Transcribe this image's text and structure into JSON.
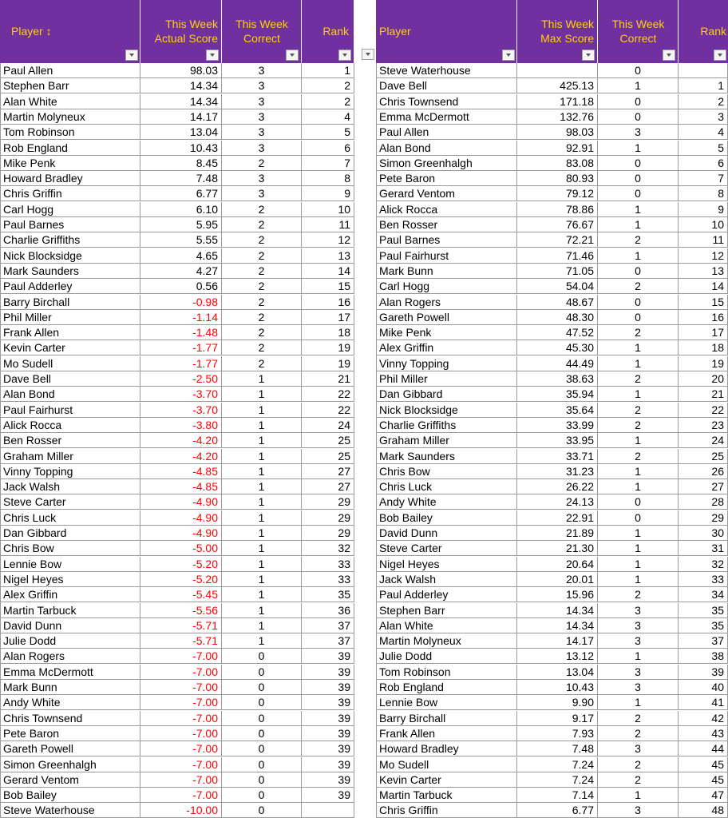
{
  "left_table": {
    "headers": {
      "player": "Player ↕",
      "actual_score": [
        "This Week",
        "Actual Score"
      ],
      "correct": [
        "This Week",
        "Correct"
      ],
      "rank": "Rank"
    },
    "rows": [
      {
        "player": "Paul Allen",
        "score": "98.03",
        "correct": "3",
        "rank": "1"
      },
      {
        "player": "Stephen Barr",
        "score": "14.34",
        "correct": "3",
        "rank": "2"
      },
      {
        "player": "Alan White",
        "score": "14.34",
        "correct": "3",
        "rank": "2"
      },
      {
        "player": "Martin Molyneux",
        "score": "14.17",
        "correct": "3",
        "rank": "4"
      },
      {
        "player": "Tom Robinson",
        "score": "13.04",
        "correct": "3",
        "rank": "5"
      },
      {
        "player": "Rob England",
        "score": "10.43",
        "correct": "3",
        "rank": "6"
      },
      {
        "player": "Mike Penk",
        "score": "8.45",
        "correct": "2",
        "rank": "7"
      },
      {
        "player": "Howard Bradley",
        "score": "7.48",
        "correct": "3",
        "rank": "8"
      },
      {
        "player": "Chris Griffin",
        "score": "6.77",
        "correct": "3",
        "rank": "9"
      },
      {
        "player": "Carl Hogg",
        "score": "6.10",
        "correct": "2",
        "rank": "10"
      },
      {
        "player": "Paul Barnes",
        "score": "5.95",
        "correct": "2",
        "rank": "11"
      },
      {
        "player": "Charlie Griffiths",
        "score": "5.55",
        "correct": "2",
        "rank": "12"
      },
      {
        "player": "Nick Blocksidge",
        "score": "4.65",
        "correct": "2",
        "rank": "13"
      },
      {
        "player": "Mark Saunders",
        "score": "4.27",
        "correct": "2",
        "rank": "14"
      },
      {
        "player": "Paul Adderley",
        "score": "0.56",
        "correct": "2",
        "rank": "15"
      },
      {
        "player": "Barry Birchall",
        "score": "-0.98",
        "correct": "2",
        "rank": "16"
      },
      {
        "player": "Phil Miller",
        "score": "-1.14",
        "correct": "2",
        "rank": "17"
      },
      {
        "player": "Frank Allen",
        "score": "-1.48",
        "correct": "2",
        "rank": "18"
      },
      {
        "player": "Kevin Carter",
        "score": "-1.77",
        "correct": "2",
        "rank": "19"
      },
      {
        "player": "Mo Sudell",
        "score": "-1.77",
        "correct": "2",
        "rank": "19"
      },
      {
        "player": "Dave Bell",
        "score": "-2.50",
        "correct": "1",
        "rank": "21"
      },
      {
        "player": "Alan Bond",
        "score": "-3.70",
        "correct": "1",
        "rank": "22"
      },
      {
        "player": "Paul Fairhurst",
        "score": "-3.70",
        "correct": "1",
        "rank": "22"
      },
      {
        "player": "Alick Rocca",
        "score": "-3.80",
        "correct": "1",
        "rank": "24"
      },
      {
        "player": "Ben Rosser",
        "score": "-4.20",
        "correct": "1",
        "rank": "25"
      },
      {
        "player": "Graham Miller",
        "score": "-4.20",
        "correct": "1",
        "rank": "25"
      },
      {
        "player": "Vinny Topping",
        "score": "-4.85",
        "correct": "1",
        "rank": "27"
      },
      {
        "player": "Jack Walsh",
        "score": "-4.85",
        "correct": "1",
        "rank": "27"
      },
      {
        "player": "Steve Carter",
        "score": "-4.90",
        "correct": "1",
        "rank": "29"
      },
      {
        "player": "Chris Luck",
        "score": "-4.90",
        "correct": "1",
        "rank": "29"
      },
      {
        "player": "Dan Gibbard",
        "score": "-4.90",
        "correct": "1",
        "rank": "29"
      },
      {
        "player": "Chris Bow",
        "score": "-5.00",
        "correct": "1",
        "rank": "32"
      },
      {
        "player": "Lennie Bow",
        "score": "-5.20",
        "correct": "1",
        "rank": "33"
      },
      {
        "player": "Nigel Heyes",
        "score": "-5.20",
        "correct": "1",
        "rank": "33"
      },
      {
        "player": "Alex Griffin",
        "score": "-5.45",
        "correct": "1",
        "rank": "35"
      },
      {
        "player": "Martin Tarbuck",
        "score": "-5.56",
        "correct": "1",
        "rank": "36"
      },
      {
        "player": "David Dunn",
        "score": "-5.71",
        "correct": "1",
        "rank": "37"
      },
      {
        "player": "Julie Dodd",
        "score": "-5.71",
        "correct": "1",
        "rank": "37"
      },
      {
        "player": "Alan Rogers",
        "score": "-7.00",
        "correct": "0",
        "rank": "39"
      },
      {
        "player": "Emma McDermott",
        "score": "-7.00",
        "correct": "0",
        "rank": "39"
      },
      {
        "player": "Mark Bunn",
        "score": "-7.00",
        "correct": "0",
        "rank": "39"
      },
      {
        "player": "Andy White",
        "score": "-7.00",
        "correct": "0",
        "rank": "39"
      },
      {
        "player": "Chris Townsend",
        "score": "-7.00",
        "correct": "0",
        "rank": "39"
      },
      {
        "player": "Pete Baron",
        "score": "-7.00",
        "correct": "0",
        "rank": "39"
      },
      {
        "player": "Gareth Powell",
        "score": "-7.00",
        "correct": "0",
        "rank": "39"
      },
      {
        "player": "Simon Greenhalgh",
        "score": "-7.00",
        "correct": "0",
        "rank": "39"
      },
      {
        "player": "Gerard Ventom",
        "score": "-7.00",
        "correct": "0",
        "rank": "39"
      },
      {
        "player": "Bob Bailey",
        "score": "-7.00",
        "correct": "0",
        "rank": "39"
      },
      {
        "player": "Steve Waterhouse",
        "score": "-10.00",
        "correct": "0",
        "rank": ""
      }
    ]
  },
  "right_table": {
    "headers": {
      "player": "Player",
      "max_score": [
        "This Week",
        "Max Score"
      ],
      "correct": [
        "This Week",
        "Correct"
      ],
      "rank": "Rank"
    },
    "rows": [
      {
        "player": "Steve Waterhouse",
        "score": "",
        "correct": "0",
        "rank": ""
      },
      {
        "player": "Dave Bell",
        "score": "425.13",
        "correct": "1",
        "rank": "1"
      },
      {
        "player": "Chris Townsend",
        "score": "171.18",
        "correct": "0",
        "rank": "2"
      },
      {
        "player": "Emma McDermott",
        "score": "132.76",
        "correct": "0",
        "rank": "3"
      },
      {
        "player": "Paul Allen",
        "score": "98.03",
        "correct": "3",
        "rank": "4"
      },
      {
        "player": "Alan Bond",
        "score": "92.91",
        "correct": "1",
        "rank": "5"
      },
      {
        "player": "Simon Greenhalgh",
        "score": "83.08",
        "correct": "0",
        "rank": "6"
      },
      {
        "player": "Pete Baron",
        "score": "80.93",
        "correct": "0",
        "rank": "7"
      },
      {
        "player": "Gerard Ventom",
        "score": "79.12",
        "correct": "0",
        "rank": "8"
      },
      {
        "player": "Alick Rocca",
        "score": "78.86",
        "correct": "1",
        "rank": "9"
      },
      {
        "player": "Ben Rosser",
        "score": "76.67",
        "correct": "1",
        "rank": "10"
      },
      {
        "player": "Paul Barnes",
        "score": "72.21",
        "correct": "2",
        "rank": "11"
      },
      {
        "player": "Paul Fairhurst",
        "score": "71.46",
        "correct": "1",
        "rank": "12"
      },
      {
        "player": "Mark Bunn",
        "score": "71.05",
        "correct": "0",
        "rank": "13"
      },
      {
        "player": "Carl Hogg",
        "score": "54.04",
        "correct": "2",
        "rank": "14"
      },
      {
        "player": "Alan Rogers",
        "score": "48.67",
        "correct": "0",
        "rank": "15"
      },
      {
        "player": "Gareth Powell",
        "score": "48.30",
        "correct": "0",
        "rank": "16"
      },
      {
        "player": "Mike Penk",
        "score": "47.52",
        "correct": "2",
        "rank": "17"
      },
      {
        "player": "Alex Griffin",
        "score": "45.30",
        "correct": "1",
        "rank": "18"
      },
      {
        "player": "Vinny Topping",
        "score": "44.49",
        "correct": "1",
        "rank": "19"
      },
      {
        "player": "Phil Miller",
        "score": "38.63",
        "correct": "2",
        "rank": "20"
      },
      {
        "player": "Dan Gibbard",
        "score": "35.94",
        "correct": "1",
        "rank": "21"
      },
      {
        "player": "Nick Blocksidge",
        "score": "35.64",
        "correct": "2",
        "rank": "22"
      },
      {
        "player": "Charlie Griffiths",
        "score": "33.99",
        "correct": "2",
        "rank": "23"
      },
      {
        "player": "Graham Miller",
        "score": "33.95",
        "correct": "1",
        "rank": "24"
      },
      {
        "player": "Mark Saunders",
        "score": "33.71",
        "correct": "2",
        "rank": "25"
      },
      {
        "player": "Chris Bow",
        "score": "31.23",
        "correct": "1",
        "rank": "26"
      },
      {
        "player": "Chris Luck",
        "score": "26.22",
        "correct": "1",
        "rank": "27"
      },
      {
        "player": "Andy White",
        "score": "24.13",
        "correct": "0",
        "rank": "28"
      },
      {
        "player": "Bob Bailey",
        "score": "22.91",
        "correct": "0",
        "rank": "29"
      },
      {
        "player": "David Dunn",
        "score": "21.89",
        "correct": "1",
        "rank": "30"
      },
      {
        "player": "Steve Carter",
        "score": "21.30",
        "correct": "1",
        "rank": "31"
      },
      {
        "player": "Nigel Heyes",
        "score": "20.64",
        "correct": "1",
        "rank": "32"
      },
      {
        "player": "Jack Walsh",
        "score": "20.01",
        "correct": "1",
        "rank": "33"
      },
      {
        "player": "Paul Adderley",
        "score": "15.96",
        "correct": "2",
        "rank": "34"
      },
      {
        "player": "Stephen Barr",
        "score": "14.34",
        "correct": "3",
        "rank": "35"
      },
      {
        "player": "Alan White",
        "score": "14.34",
        "correct": "3",
        "rank": "35"
      },
      {
        "player": "Martin Molyneux",
        "score": "14.17",
        "correct": "3",
        "rank": "37"
      },
      {
        "player": "Julie Dodd",
        "score": "13.12",
        "correct": "1",
        "rank": "38"
      },
      {
        "player": "Tom Robinson",
        "score": "13.04",
        "correct": "3",
        "rank": "39"
      },
      {
        "player": "Rob England",
        "score": "10.43",
        "correct": "3",
        "rank": "40"
      },
      {
        "player": "Lennie Bow",
        "score": "9.90",
        "correct": "1",
        "rank": "41"
      },
      {
        "player": "Barry Birchall",
        "score": "9.17",
        "correct": "2",
        "rank": "42"
      },
      {
        "player": "Frank Allen",
        "score": "7.93",
        "correct": "2",
        "rank": "43"
      },
      {
        "player": "Howard Bradley",
        "score": "7.48",
        "correct": "3",
        "rank": "44"
      },
      {
        "player": "Mo Sudell",
        "score": "7.24",
        "correct": "2",
        "rank": "45"
      },
      {
        "player": "Kevin Carter",
        "score": "7.24",
        "correct": "2",
        "rank": "45"
      },
      {
        "player": "Martin Tarbuck",
        "score": "7.14",
        "correct": "1",
        "rank": "47"
      },
      {
        "player": "Chris Griffin",
        "score": "6.77",
        "correct": "3",
        "rank": "48"
      }
    ]
  },
  "colors": {
    "header_bg": "#7030a0",
    "header_text": "#ffd200",
    "negative_text": "#ff0000"
  }
}
